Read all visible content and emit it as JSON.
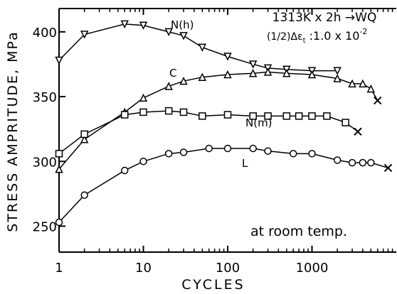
{
  "chart_data": {
    "type": "line",
    "xlabel": "CYCLES",
    "ylabel": "STRESS AMPRITUDE, MPa",
    "xscale": "log",
    "xlim": [
      1,
      10000
    ],
    "ylim": [
      230,
      418
    ],
    "xticks": [
      1,
      10,
      100,
      1000
    ],
    "yticks": [
      250,
      300,
      350,
      400
    ],
    "annotations": [
      "1313K x 2h →WQ",
      "at room temp."
    ],
    "strain": {
      "text": "(1/2)Δε",
      "sub": "t",
      "mid": " :1.0 x 10",
      "sup": "-2"
    },
    "series": [
      {
        "name": "N(h)",
        "color": "#000",
        "marker": "triangle-down",
        "x": [
          1,
          2,
          6,
          10,
          20,
          30,
          50,
          100,
          200,
          300,
          500,
          1000,
          2000
        ],
        "values": [
          378,
          398,
          406,
          405,
          400,
          397,
          388,
          381,
          375,
          372,
          371,
          370,
          370
        ]
      },
      {
        "name": "C",
        "color": "#000",
        "marker": "triangle-up",
        "x": [
          1,
          2,
          6,
          10,
          20,
          30,
          50,
          100,
          200,
          300,
          500,
          1000,
          2000,
          3000,
          4000,
          5000
        ],
        "values": [
          294,
          317,
          338,
          349,
          358,
          362,
          365,
          367,
          368,
          369,
          368,
          367,
          364,
          360,
          360,
          356
        ],
        "failure": {
          "x": 6000,
          "value": 347
        }
      },
      {
        "name": "N(m)",
        "color": "#000",
        "marker": "square",
        "x": [
          1,
          2,
          6,
          10,
          20,
          30,
          50,
          100,
          200,
          300,
          500,
          700,
          1000,
          1500,
          2500
        ],
        "values": [
          306,
          321,
          336,
          338,
          339,
          338,
          335,
          336,
          335,
          335,
          335,
          335,
          335,
          335,
          330
        ],
        "failure": {
          "x": 3500,
          "value": 323
        }
      },
      {
        "name": "L",
        "color": "#000",
        "marker": "circle",
        "x": [
          1,
          2,
          6,
          10,
          20,
          30,
          60,
          100,
          200,
          300,
          600,
          1000,
          2000,
          3000,
          4000,
          5000
        ],
        "values": [
          253,
          274,
          293,
          300,
          306,
          307,
          310,
          310,
          310,
          308,
          306,
          306,
          301,
          299,
          299,
          299
        ],
        "failure": {
          "x": 8000,
          "value": 295
        }
      }
    ]
  }
}
